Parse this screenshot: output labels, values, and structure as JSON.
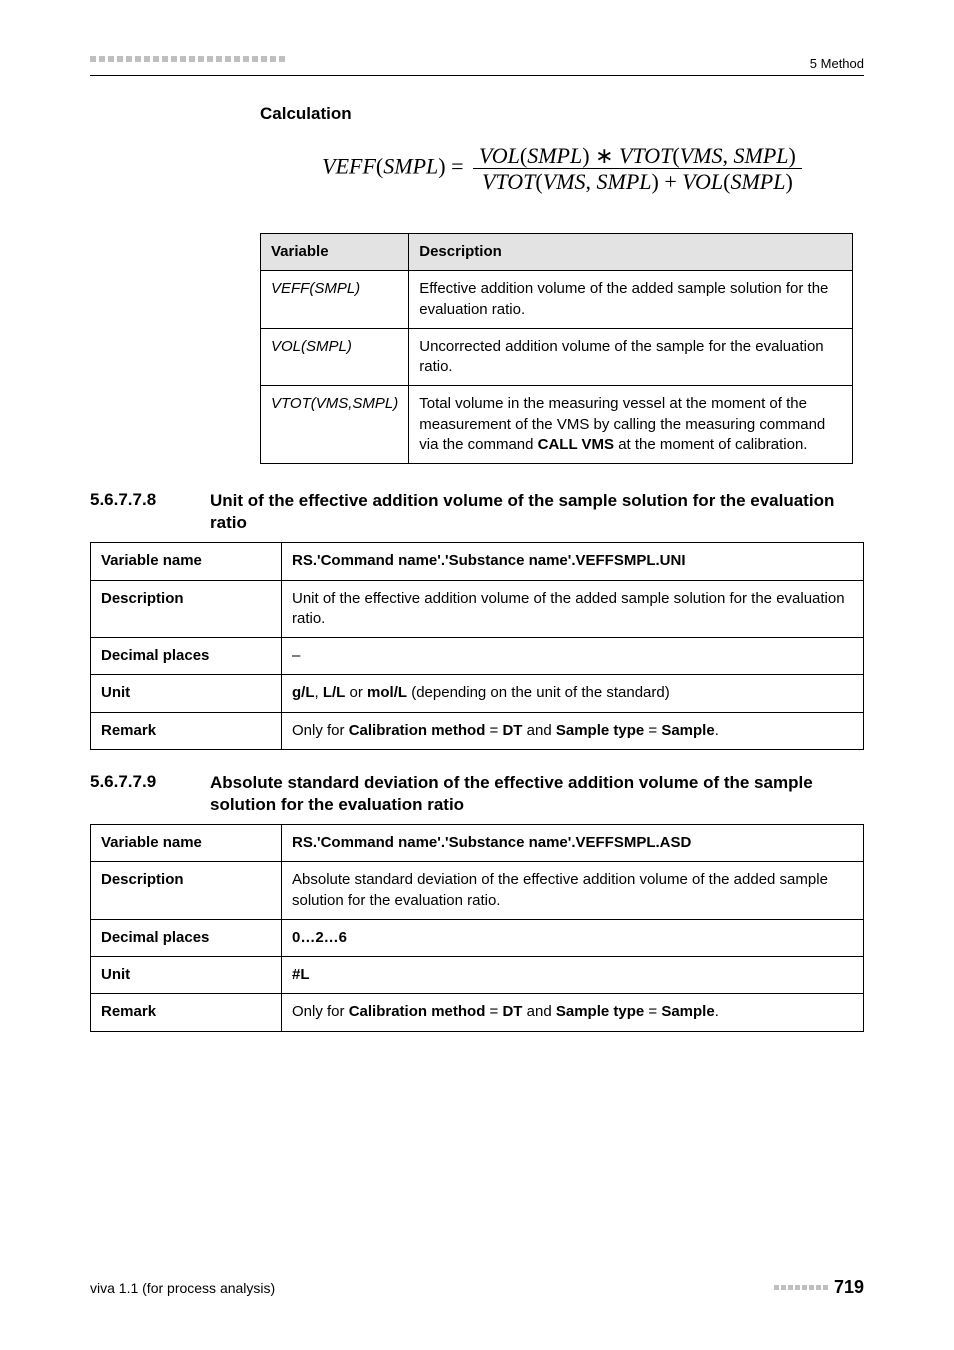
{
  "header": {
    "right": "5 Method",
    "dot_count": 22,
    "dot_color": "#bfbfbf"
  },
  "calculation_heading": "Calculation",
  "formula": {
    "lhs": "VEFF",
    "lhs_arg": "SMPL",
    "num_a": "VOL",
    "num_a_arg": "SMPL",
    "num_b": "VTOT",
    "num_b_arg1": "VMS",
    "num_b_arg2": "SMPL",
    "den_a": "VTOT",
    "den_a_arg1": "VMS",
    "den_a_arg2": "SMPL",
    "den_b": "VOL",
    "den_b_arg": "SMPL"
  },
  "vars_table": {
    "head": {
      "c1": "Variable",
      "c2": "Description"
    },
    "rows": [
      {
        "var": "VEFF(SMPL)",
        "desc": "Effective addition volume of the added sample solution for the evaluation ratio."
      },
      {
        "var": "VOL(SMPL)",
        "desc": "Uncorrected addition volume of the sample for the evaluation ratio."
      },
      {
        "var": "VTOT(VMS,SMPL)",
        "desc_pre": "Total volume in the measuring vessel at the moment of the measurement of the VMS by calling the measuring command via the command ",
        "desc_bold": "CALL VMS",
        "desc_post": " at the moment of calibration."
      }
    ]
  },
  "sec1": {
    "num": "5.6.7.7.8",
    "title": "Unit of the effective addition volume of the sample solution for the evaluation ratio",
    "rows": {
      "var_name_label": "Variable name",
      "var_name_value": "RS.'Command name'.'Substance name'.VEFFSMPL.UNI",
      "desc_label": "Description",
      "desc_value": "Unit of the effective addition volume of the added sample solution for the evaluation ratio.",
      "dec_label": "Decimal places",
      "dec_value": "–",
      "unit_label": "Unit",
      "unit_b1": "g/L",
      "unit_t1": ", ",
      "unit_b2": "L/L",
      "unit_t2": " or ",
      "unit_b3": "mol/L",
      "unit_t3": " (depending on the unit of the standard)",
      "rem_label": "Remark",
      "rem_t1": "Only for ",
      "rem_b1": "Calibration method",
      "rem_t2": " = ",
      "rem_b2": "DT",
      "rem_t3": " and ",
      "rem_b3": "Sample type",
      "rem_t4": " = ",
      "rem_b4": "Sample",
      "rem_t5": "."
    }
  },
  "sec2": {
    "num": "5.6.7.7.9",
    "title": "Absolute standard deviation of the effective addition volume of the sample solution for the evaluation ratio",
    "rows": {
      "var_name_label": "Variable name",
      "var_name_value": "RS.'Command name'.'Substance name'.VEFFSMPL.ASD",
      "desc_label": "Description",
      "desc_value": "Absolute standard deviation of the effective addition volume of the added sample solution for the evaluation ratio.",
      "dec_label": "Decimal places",
      "dec_value": "0…2…6",
      "unit_label": "Unit",
      "unit_value": "#L",
      "rem_label": "Remark",
      "rem_t1": "Only for ",
      "rem_b1": "Calibration method",
      "rem_t2": " = ",
      "rem_b2": "DT",
      "rem_t3": " and ",
      "rem_b3": "Sample type",
      "rem_t4": " = ",
      "rem_b4": "Sample",
      "rem_t5": "."
    }
  },
  "footer": {
    "left": "viva 1.1 (for process analysis)",
    "page": "719",
    "tiny_count": 8,
    "tiny_color": "#bfbfbf"
  }
}
